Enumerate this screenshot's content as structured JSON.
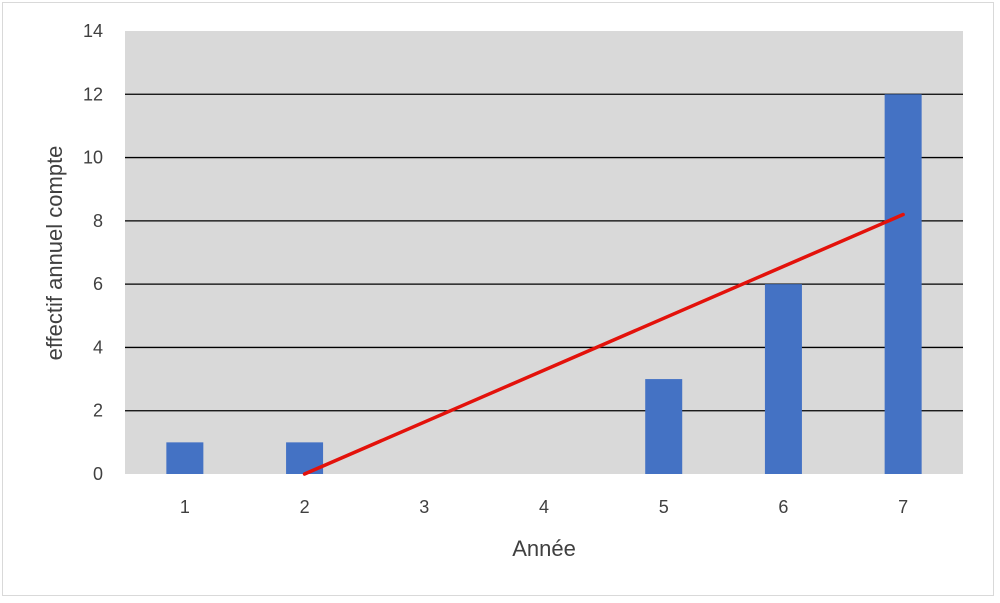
{
  "chart_data": {
    "type": "bar",
    "title": "",
    "xlabel": "Année",
    "ylabel": "effectif annuel compte",
    "categories": [
      "1",
      "2",
      "3",
      "4",
      "5",
      "6",
      "7"
    ],
    "values": [
      1,
      1,
      0,
      0,
      3,
      6,
      12
    ],
    "ylim": [
      0,
      14
    ],
    "yticks": [
      "0",
      "2",
      "4",
      "6",
      "8",
      "10",
      "12",
      "14"
    ],
    "grid": true,
    "legend": "none",
    "trendline": {
      "type": "line",
      "from": {
        "x": "2",
        "y": 0
      },
      "to": {
        "x": "7",
        "y": 8.2
      }
    },
    "colors": {
      "bar": "#4472C4",
      "trendline": "#E3120B",
      "plot_background": "#D9D9D9",
      "gridline": "#000000"
    }
  }
}
